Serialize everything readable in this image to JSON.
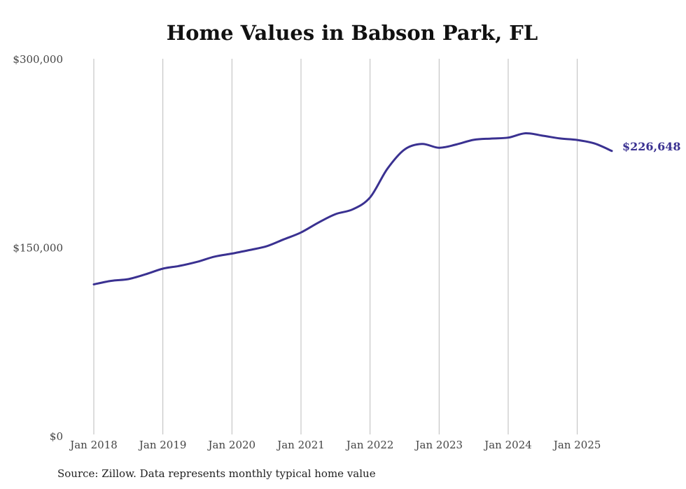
{
  "colors": {
    "line": "#3a3191",
    "grid": "#bbbbbb",
    "text": "#444444"
  },
  "chart_data": {
    "type": "line",
    "title": "Home Values in Babson Park, FL",
    "source": "Source: Zillow. Data represents monthly typical home value",
    "ylim": [
      0,
      300000
    ],
    "y_ticks": [
      {
        "value": 0,
        "label": "$0"
      },
      {
        "value": 150000,
        "label": "$150,000"
      },
      {
        "value": 300000,
        "label": "$300,000"
      }
    ],
    "x_range": [
      "2018-01",
      "2025-07"
    ],
    "x_ticks": [
      {
        "date": "2018-01",
        "label": "Jan 2018"
      },
      {
        "date": "2019-01",
        "label": "Jan 2019"
      },
      {
        "date": "2020-01",
        "label": "Jan 2020"
      },
      {
        "date": "2021-01",
        "label": "Jan 2021"
      },
      {
        "date": "2022-01",
        "label": "Jan 2022"
      },
      {
        "date": "2023-01",
        "label": "Jan 2023"
      },
      {
        "date": "2024-01",
        "label": "Jan 2024"
      },
      {
        "date": "2025-01",
        "label": "Jan 2025"
      }
    ],
    "grid": {
      "vertical": true,
      "horizontal": false
    },
    "series": [
      {
        "x": [
          "2018-01",
          "2018-04",
          "2018-07",
          "2018-10",
          "2019-01",
          "2019-04",
          "2019-07",
          "2019-10",
          "2020-01",
          "2020-04",
          "2020-07",
          "2020-10",
          "2021-01",
          "2021-04",
          "2021-07",
          "2021-10",
          "2022-01",
          "2022-04",
          "2022-07",
          "2022-10",
          "2023-01",
          "2023-04",
          "2023-07",
          "2023-10",
          "2024-01",
          "2024-04",
          "2024-07",
          "2024-10",
          "2025-01",
          "2025-04",
          "2025-07"
        ],
        "y": [
          120500,
          123300,
          124700,
          128500,
          133000,
          135300,
          138500,
          142600,
          145000,
          147800,
          150800,
          156300,
          161800,
          169600,
          176400,
          180200,
          189700,
          212400,
          227800,
          232200,
          229200,
          231800,
          235500,
          236500,
          237300,
          240700,
          238800,
          236600,
          235400,
          232600,
          226648
        ],
        "end_label": "$226,648"
      }
    ]
  }
}
